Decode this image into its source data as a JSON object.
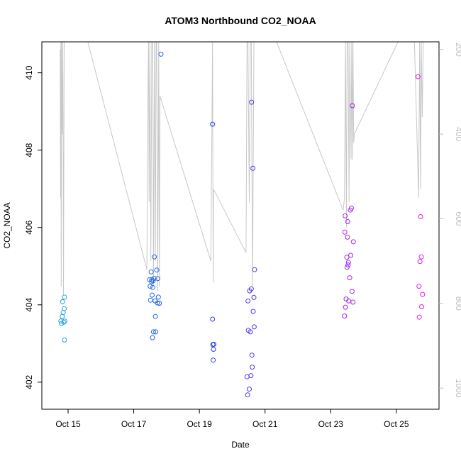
{
  "chart_data": {
    "type": "scatter",
    "title": "ATOM3 Northbound CO2_NOAA",
    "xlabel": "Date",
    "ylabel": "CO2_NOAA",
    "xlim_days": [
      14.2,
      26.3
    ],
    "ylim": [
      401.3,
      410.8
    ],
    "right_ylim_reversed": [
      182,
      1050
    ],
    "x_ticks": [
      {
        "label": "Oct 15",
        "value": 15
      },
      {
        "label": "Oct 17",
        "value": 17
      },
      {
        "label": "Oct 19",
        "value": 19
      },
      {
        "label": "Oct 21",
        "value": 21
      },
      {
        "label": "Oct 23",
        "value": 23
      },
      {
        "label": "Oct 25",
        "value": 25
      }
    ],
    "y_ticks": [
      {
        "label": "402",
        "value": 402
      },
      {
        "label": "404",
        "value": 404
      },
      {
        "label": "406",
        "value": 406
      },
      {
        "label": "408",
        "value": 408
      },
      {
        "label": "410",
        "value": 410
      }
    ],
    "right_ticks": [
      {
        "label": "200",
        "value": 200
      },
      {
        "label": "400",
        "value": 400
      },
      {
        "label": "600",
        "value": 600
      },
      {
        "label": "800",
        "value": 800
      },
      {
        "label": "1000",
        "value": 1000
      }
    ],
    "colors": {
      "line": "#c8c8c8",
      "gradient_start": "#1fa6e0",
      "gradient_mid": "#2b3df0",
      "gradient_end": "#e41ae4"
    },
    "points": [
      [
        14.78,
        403.58
      ],
      [
        14.8,
        403.52
      ],
      [
        14.82,
        403.7
      ],
      [
        14.83,
        404.08
      ],
      [
        14.85,
        403.8
      ],
      [
        14.87,
        403.55
      ],
      [
        14.88,
        403.9
      ],
      [
        14.89,
        404.2
      ],
      [
        14.9,
        403.58
      ],
      [
        14.89,
        403.09
      ],
      [
        17.48,
        404.65
      ],
      [
        17.5,
        404.48
      ],
      [
        17.51,
        404.12
      ],
      [
        17.53,
        404.85
      ],
      [
        17.54,
        404.6
      ],
      [
        17.55,
        404.65
      ],
      [
        17.56,
        404.25
      ],
      [
        17.57,
        403.15
      ],
      [
        17.58,
        404.45
      ],
      [
        17.59,
        404.62
      ],
      [
        17.6,
        403.3
      ],
      [
        17.62,
        404.68
      ],
      [
        17.63,
        405.24
      ],
      [
        17.65,
        404.1
      ],
      [
        17.66,
        403.7
      ],
      [
        17.67,
        403.3
      ],
      [
        17.7,
        404.9
      ],
      [
        17.72,
        404.05
      ],
      [
        17.73,
        404.68
      ],
      [
        17.75,
        404.2
      ],
      [
        17.78,
        404.04
      ],
      [
        17.83,
        410.48
      ],
      [
        19.4,
        408.67
      ],
      [
        19.4,
        403.63
      ],
      [
        19.41,
        402.97
      ],
      [
        19.42,
        402.57
      ],
      [
        19.43,
        402.85
      ],
      [
        19.44,
        402.98
      ],
      [
        20.45,
        402.14
      ],
      [
        20.47,
        401.67
      ],
      [
        20.48,
        404.1
      ],
      [
        20.49,
        403.34
      ],
      [
        20.52,
        401.82
      ],
      [
        20.53,
        404.36
      ],
      [
        20.55,
        403.3
      ],
      [
        20.57,
        402.17
      ],
      [
        20.58,
        404.41
      ],
      [
        20.59,
        409.24
      ],
      [
        20.6,
        402.7
      ],
      [
        20.61,
        402.39
      ],
      [
        20.63,
        407.53
      ],
      [
        20.64,
        403.83
      ],
      [
        20.66,
        404.19
      ],
      [
        20.67,
        403.43
      ],
      [
        20.68,
        404.91
      ],
      [
        23.42,
        403.71
      ],
      [
        23.43,
        405.88
      ],
      [
        23.44,
        406.3
      ],
      [
        23.45,
        403.94
      ],
      [
        23.47,
        404.15
      ],
      [
        23.49,
        405.23
      ],
      [
        23.5,
        404.97
      ],
      [
        23.51,
        405.75
      ],
      [
        23.52,
        406.15
      ],
      [
        23.53,
        405.03
      ],
      [
        23.54,
        405.1
      ],
      [
        23.55,
        404.1
      ],
      [
        23.58,
        404.7
      ],
      [
        23.6,
        406.45
      ],
      [
        23.61,
        405.28
      ],
      [
        23.63,
        406.5
      ],
      [
        23.65,
        404.35
      ],
      [
        23.66,
        409.15
      ],
      [
        23.68,
        404.07
      ],
      [
        23.69,
        405.63
      ],
      [
        25.66,
        409.9
      ],
      [
        25.69,
        404.48
      ],
      [
        25.7,
        403.68
      ],
      [
        25.72,
        405.12
      ],
      [
        25.74,
        406.28
      ],
      [
        25.76,
        405.24
      ],
      [
        25.77,
        403.95
      ],
      [
        25.8,
        404.27
      ]
    ],
    "alt_series": [
      [
        14.76,
        200
      ],
      [
        14.77,
        550
      ],
      [
        14.78,
        182
      ],
      [
        14.79,
        760
      ],
      [
        14.8,
        182
      ],
      [
        14.82,
        400
      ],
      [
        14.84,
        182
      ],
      [
        14.86,
        780
      ],
      [
        14.88,
        182
      ],
      [
        14.9,
        182
      ],
      [
        15.6,
        182
      ],
      [
        17.4,
        720
      ],
      [
        17.43,
        320
      ],
      [
        17.45,
        182
      ],
      [
        17.47,
        560
      ],
      [
        17.49,
        182
      ],
      [
        17.52,
        700
      ],
      [
        17.55,
        182
      ],
      [
        17.58,
        182
      ],
      [
        17.6,
        760
      ],
      [
        17.63,
        182
      ],
      [
        17.66,
        700
      ],
      [
        17.68,
        182
      ],
      [
        17.7,
        182
      ],
      [
        17.73,
        770
      ],
      [
        17.76,
        182
      ],
      [
        17.78,
        760
      ],
      [
        17.8,
        310
      ],
      [
        19.35,
        700
      ],
      [
        19.4,
        182
      ],
      [
        19.42,
        750
      ],
      [
        19.43,
        530
      ],
      [
        20.42,
        680
      ],
      [
        20.45,
        182
      ],
      [
        20.48,
        182
      ],
      [
        20.52,
        560
      ],
      [
        20.55,
        182
      ],
      [
        20.58,
        182
      ],
      [
        20.62,
        760
      ],
      [
        20.66,
        182
      ],
      [
        20.68,
        182
      ],
      [
        20.7,
        182
      ],
      [
        21.35,
        182
      ],
      [
        23.38,
        580
      ],
      [
        23.42,
        550
      ],
      [
        23.45,
        182
      ],
      [
        23.48,
        620
      ],
      [
        23.5,
        182
      ],
      [
        23.53,
        182
      ],
      [
        23.56,
        560
      ],
      [
        23.58,
        182
      ],
      [
        23.62,
        460
      ],
      [
        23.64,
        182
      ],
      [
        23.66,
        460
      ],
      [
        23.68,
        182
      ],
      [
        23.7,
        420
      ],
      [
        23.72,
        400
      ],
      [
        25.05,
        182
      ],
      [
        25.55,
        182
      ],
      [
        25.68,
        550
      ],
      [
        25.71,
        182
      ],
      [
        25.74,
        530
      ],
      [
        25.76,
        182
      ],
      [
        25.79,
        360
      ],
      [
        25.82,
        182
      ]
    ]
  }
}
